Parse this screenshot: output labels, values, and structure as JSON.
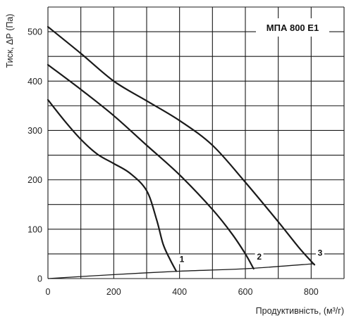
{
  "chart_data": {
    "type": "line",
    "title": "МПА 800 Е1",
    "xlabel": "Продуктивність, (м³/г)",
    "ylabel": "Тиск, ΔP (Па)",
    "xlim": [
      0,
      900
    ],
    "ylim": [
      0,
      550
    ],
    "x_ticks": [
      "0",
      "200",
      "400",
      "600",
      "800"
    ],
    "y_ticks": [
      "0",
      "100",
      "200",
      "300",
      "400",
      "500"
    ],
    "grid": true,
    "series": [
      {
        "name": "1",
        "x": [
          0,
          50,
          100,
          150,
          200,
          250,
          300,
          330,
          350,
          370,
          390
        ],
        "y": [
          362,
          320,
          282,
          252,
          233,
          213,
          178,
          120,
          70,
          40,
          15
        ]
      },
      {
        "name": "2",
        "x": [
          0,
          100,
          200,
          300,
          400,
          500,
          560,
          600,
          625
        ],
        "y": [
          433,
          383,
          330,
          270,
          210,
          140,
          90,
          50,
          20
        ]
      },
      {
        "name": "3",
        "x": [
          0,
          100,
          200,
          300,
          400,
          500,
          600,
          700,
          760,
          800,
          810
        ],
        "y": [
          510,
          456,
          400,
          360,
          320,
          270,
          195,
          115,
          65,
          35,
          28
        ]
      }
    ],
    "system_curve": {
      "x": [
        0,
        200,
        400,
        600,
        810
      ],
      "y": [
        0,
        8,
        15,
        20,
        30
      ]
    }
  }
}
